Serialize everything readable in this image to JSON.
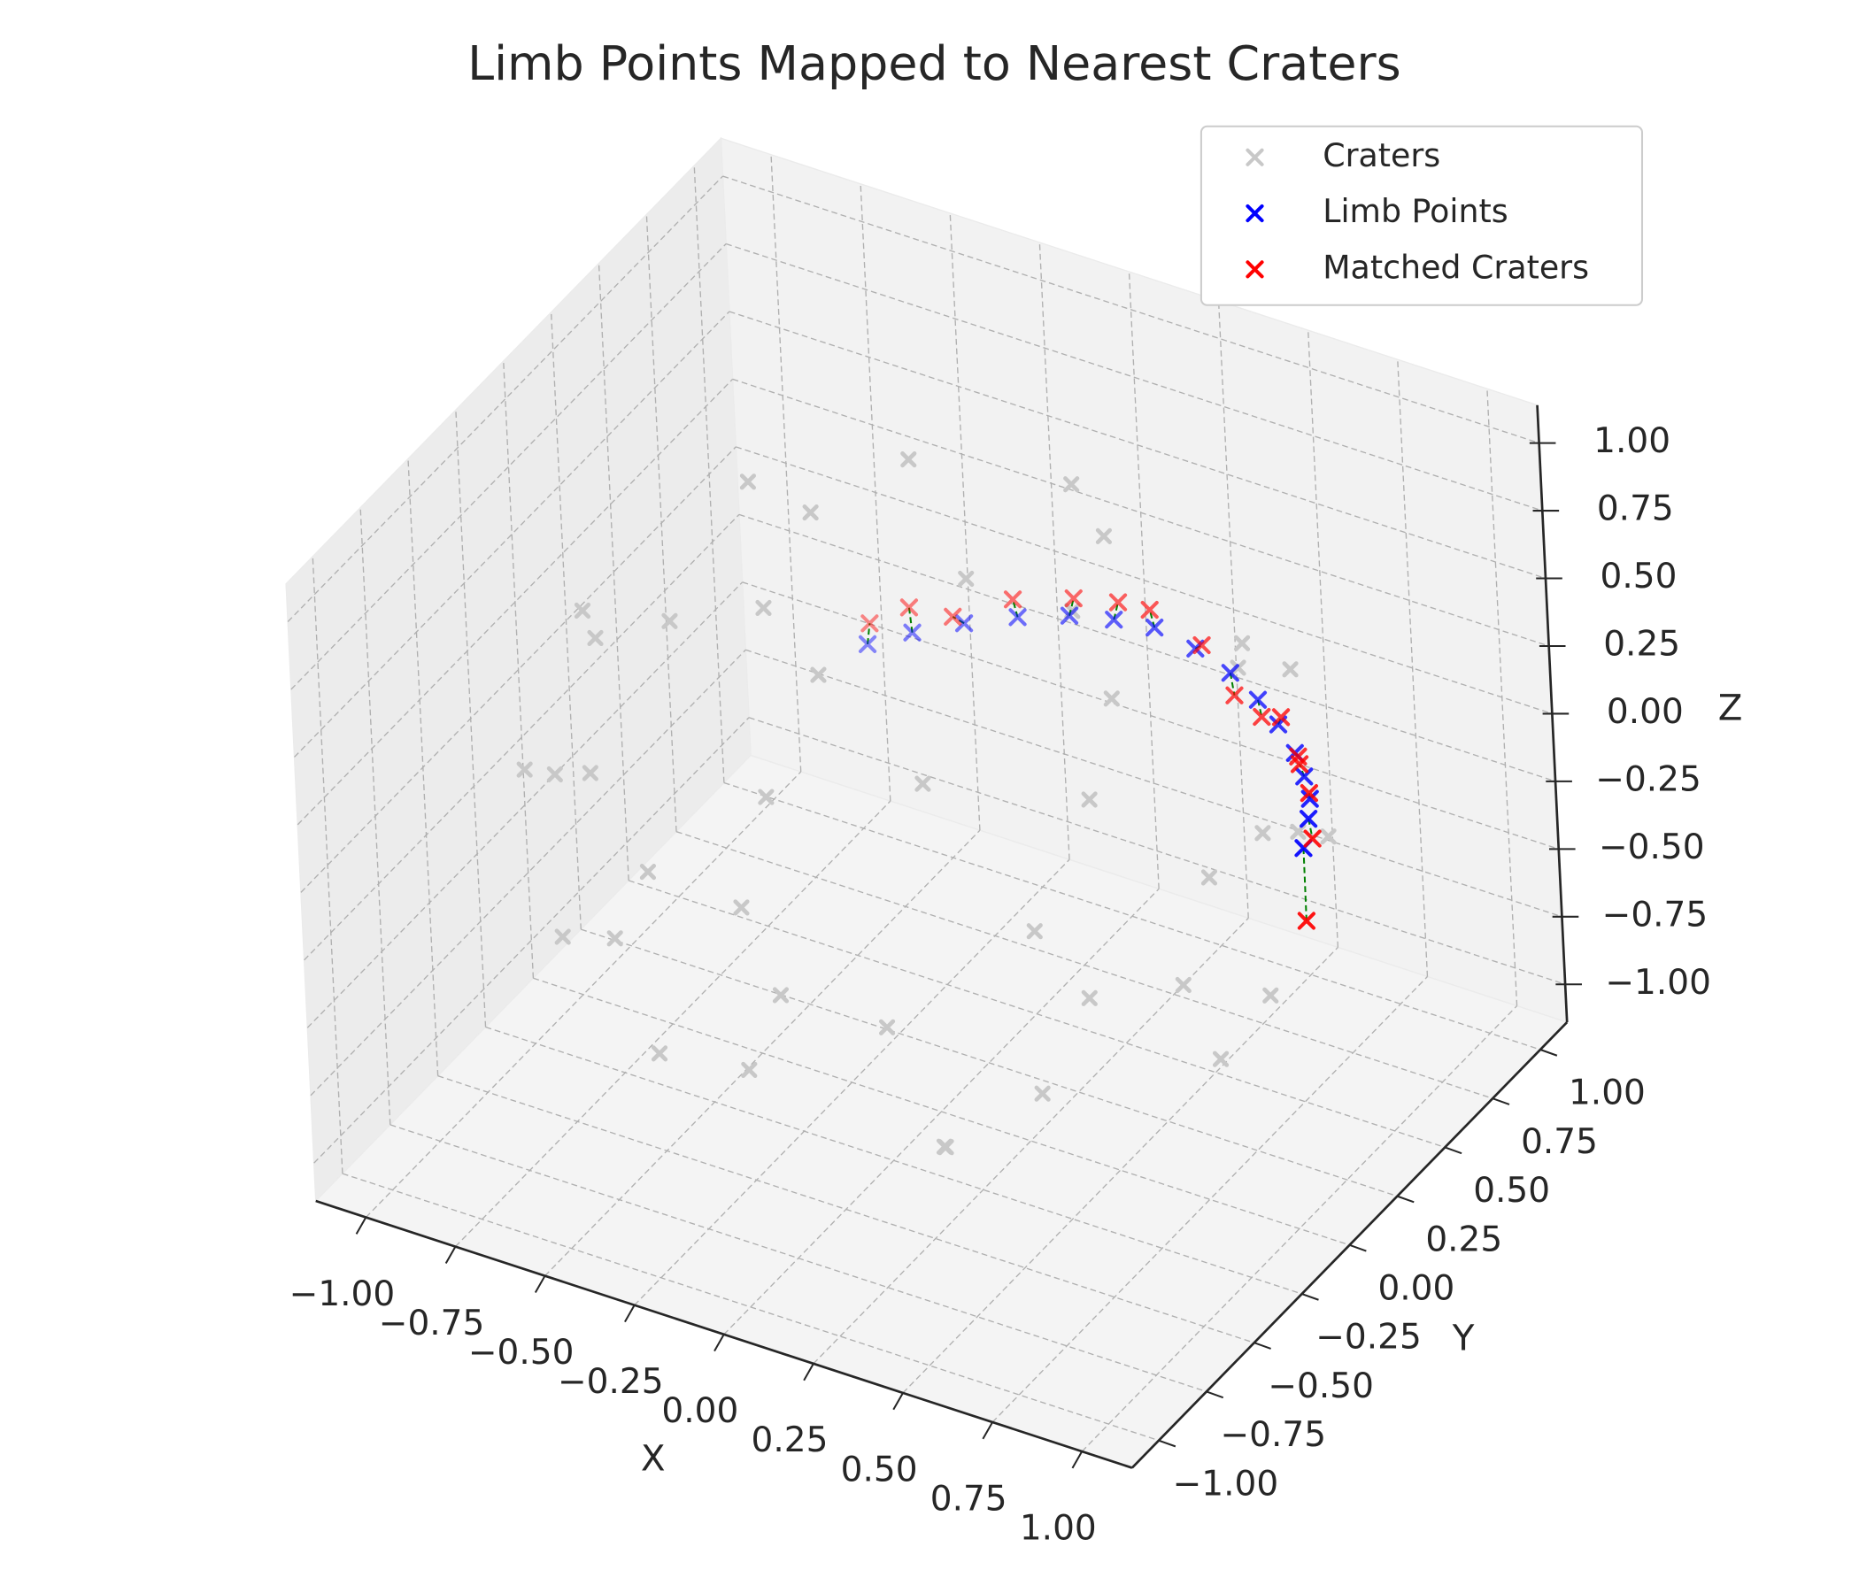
{
  "chart_data": {
    "type": "scatter3d",
    "title": "Limb Points Mapped to Nearest Craters",
    "xlabel": "X",
    "ylabel": "Y",
    "zlabel": "Z",
    "xlim": [
      -1.14,
      1.14
    ],
    "ylim": [
      -1.14,
      1.14
    ],
    "zlim": [
      -1.14,
      1.14
    ],
    "xticks": [
      {
        "value": -1,
        "label": "−1.00"
      },
      {
        "value": -0.75,
        "label": "−0.75"
      },
      {
        "value": -0.5,
        "label": "−0.50"
      },
      {
        "value": -0.25,
        "label": "−0.25"
      },
      {
        "value": 0,
        "label": "0.00"
      },
      0.25,
      {
        "value": 0.5,
        "label": "0.50"
      },
      0.75,
      {
        "value": 1,
        "label": "1.00"
      }
    ],
    "yticks": [
      {
        "value": -1,
        "label": "−1.00"
      },
      {
        "value": -0.75,
        "label": "−0.75"
      },
      {
        "value": -0.5,
        "label": "−0.50"
      },
      {
        "value": -0.25,
        "label": "−0.25"
      },
      {
        "value": 0,
        "label": "0.00"
      },
      0.25,
      {
        "value": 0.5,
        "label": "0.50"
      },
      0.75,
      {
        "value": 1,
        "label": "1.00"
      }
    ],
    "zticks": [
      {
        "value": -1,
        "label": "−1.00"
      },
      {
        "value": -0.75,
        "label": "−0.75"
      },
      {
        "value": -0.5,
        "label": "−0.50"
      },
      {
        "value": -0.25,
        "label": "−0.25"
      },
      {
        "value": 0,
        "label": "0.00"
      },
      0.25,
      {
        "value": 0.5,
        "label": "0.50"
      },
      0.75,
      {
        "value": 1,
        "label": "1.00"
      }
    ],
    "grid": true,
    "legend": "upper right",
    "series": [
      {
        "name": "Craters",
        "color": "#c8c8c8",
        "x": [
          0.44,
          -0.22,
          -0.22,
          0.69,
          0,
          -0.69,
          -0.69,
          0,
          0.69,
          0.95,
          0.67,
          0,
          -0.67,
          -0.95,
          -0.67,
          0,
          0.67,
          0.92,
          0.38,
          -0.38,
          -0.92,
          -0.92,
          -0.38,
          0.38,
          0.92,
          0.95,
          0.67,
          0,
          -0.67,
          -0.95,
          -0.67,
          0,
          0.67,
          0.8,
          0.4,
          -0.4,
          -0.8,
          -0.4,
          0.4,
          0.22,
          -0.44,
          0.22
        ],
        "y": [
          0,
          0.38,
          -0.38,
          0.4,
          0.8,
          0.4,
          -0.4,
          -0.8,
          -0.4,
          0,
          0.67,
          0.95,
          0.67,
          0,
          -0.67,
          -0.95,
          -0.67,
          0.38,
          0.92,
          0.92,
          0.38,
          -0.38,
          -0.92,
          -0.92,
          -0.38,
          0,
          0.67,
          0.95,
          0.67,
          0,
          -0.67,
          -0.95,
          -0.67,
          0,
          0.69,
          0.69,
          0,
          -0.69,
          -0.69,
          0.38,
          0,
          -0.38
        ],
        "z": [
          0.9,
          0.9,
          0.9,
          0.6,
          0.6,
          0.6,
          0.6,
          0.6,
          0.6,
          0.3,
          0.3,
          0.3,
          0.3,
          0.3,
          0.3,
          0.3,
          0.3,
          0,
          0,
          0,
          0,
          0,
          0,
          0,
          0,
          -0.3,
          -0.3,
          -0.3,
          -0.3,
          -0.3,
          -0.3,
          -0.3,
          -0.3,
          -0.6,
          -0.6,
          -0.6,
          -0.6,
          -0.6,
          -0.6,
          -0.9,
          -0.9,
          -0.9
        ]
      },
      {
        "name": "Limb Points",
        "color": "#0000ff",
        "x": [
          -0.6,
          -0.5,
          -0.38,
          -0.25,
          -0.12,
          0,
          0.12,
          0.25,
          0.38,
          0.5,
          0.6,
          0.7,
          0.78,
          0.85,
          0.9,
          0.95
        ],
        "y": [
          0.8,
          0.85,
          0.9,
          0.94,
          0.97,
          0.98,
          0.97,
          0.94,
          0.88,
          0.8,
          0.72,
          0.62,
          0.52,
          0.42,
          0.32,
          0.2
        ],
        "z": [
          -0.25,
          -0.2,
          -0.15,
          -0.1,
          -0.06,
          -0.03,
          0,
          0,
          0.01,
          0.02,
          0.03,
          0.04,
          0.06,
          0.08,
          0.1,
          0.1
        ]
      },
      {
        "name": "Matched Craters",
        "color": "#ff0000",
        "x": [
          -0.58,
          -0.5,
          -0.4,
          -0.25,
          -0.1,
          0.02,
          0.12,
          0.28,
          0.4,
          0.52,
          0.62,
          0.72,
          0.78,
          0.86,
          0.92,
          0.96
        ],
        "y": [
          0.78,
          0.84,
          0.88,
          0.92,
          0.96,
          0.97,
          0.95,
          0.92,
          0.86,
          0.78,
          0.7,
          0.6,
          0.5,
          0.4,
          0.3,
          0.18
        ],
        "z": [
          -0.15,
          -0.1,
          -0.12,
          -0.02,
          0.02,
          0.05,
          0.08,
          0.04,
          -0.05,
          -0.02,
          0.08,
          0.05,
          0.12,
          0.12,
          0.05,
          -0.15
        ]
      }
    ]
  }
}
